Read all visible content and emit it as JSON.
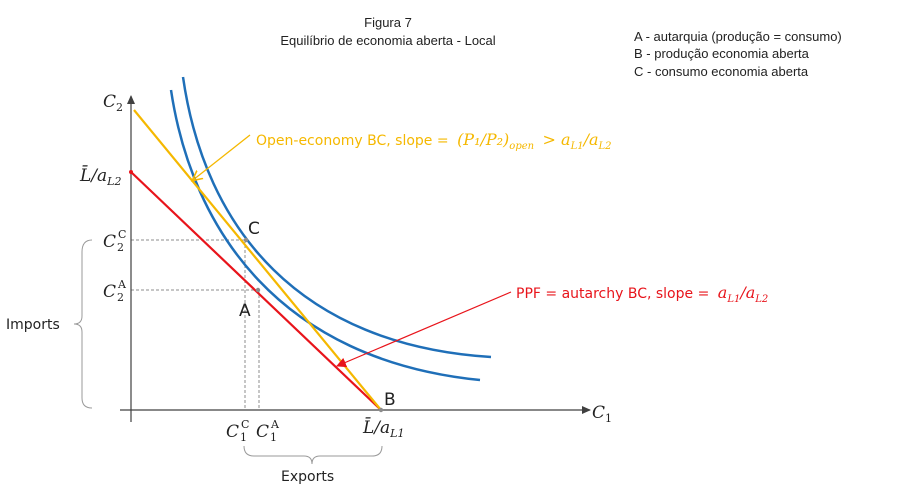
{
  "header": {
    "title": "Figura 7",
    "subtitle": "Equilíbrio de economia aberta - Local"
  },
  "legend": {
    "items": [
      "A - autarquia (produção = consumo)",
      "B - produção economia aberta",
      "C - consumo economia aberta"
    ]
  },
  "axes": {
    "y_label": "C",
    "y_label_sub": "2",
    "x_label": "C",
    "x_label_sub": "1"
  },
  "ticks": {
    "y_intercept": {
      "main": "L̄/a",
      "sub": "L2"
    },
    "c2c": {
      "main": "C",
      "sub": "2",
      "sup": "C"
    },
    "c2a": {
      "main": "C",
      "sub": "2",
      "sup": "A"
    },
    "c1c": {
      "main": "C",
      "sub": "1",
      "sup": "C"
    },
    "c1a": {
      "main": "C",
      "sub": "1",
      "sup": "A"
    },
    "x_intercept": {
      "main": "L̄/a",
      "sub": "L1"
    }
  },
  "points": {
    "a": "A",
    "b": "B",
    "c": "C"
  },
  "brackets": {
    "imports": "Imports",
    "exports": "Exports"
  },
  "annotations": {
    "open_bc": {
      "lead": "Open-economy BC, slope =",
      "formula": "(P₁/P₂)",
      "formula_sub": "open",
      "rest": "> a",
      "rest_sub1": "L1",
      "rest_mid": "/a",
      "rest_sub2": "L2"
    },
    "ppf": {
      "lead": "PPF = autarchy BC, slope =",
      "a": "a",
      "sub1": "L1",
      "mid": "/a",
      "sub2": "L2"
    }
  },
  "colors": {
    "ppf": "#e8141b",
    "open_bc": "#f5b800",
    "indifference": "#1f6fb8",
    "axes": "#404040",
    "guides": "#8c8c8c"
  }
}
